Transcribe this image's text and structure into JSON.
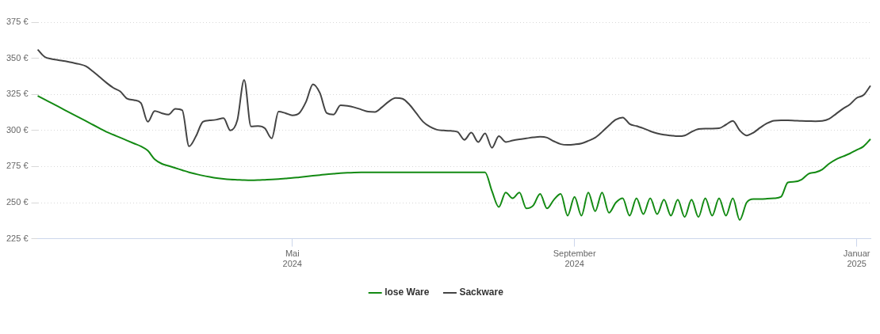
{
  "chart_data": {
    "type": "line",
    "categories": [
      null,
      null,
      null,
      null,
      null,
      null,
      null,
      null,
      null,
      null,
      null,
      null,
      null,
      null,
      null,
      null,
      null,
      null,
      null,
      null,
      null,
      null,
      null,
      null,
      null,
      null,
      null,
      null,
      null,
      null,
      null,
      null,
      null,
      null,
      null,
      null,
      null,
      "Mai 2024",
      null,
      null,
      null,
      null,
      null,
      null,
      null,
      null,
      null,
      null,
      null,
      null,
      null,
      null,
      null,
      null,
      null,
      null,
      null,
      null,
      null,
      null,
      null,
      null,
      null,
      null,
      null,
      null,
      null,
      null,
      null,
      null,
      null,
      null,
      null,
      null,
      null,
      null,
      null,
      null,
      "September 2024",
      null,
      null,
      null,
      null,
      null,
      null,
      null,
      null,
      null,
      null,
      null,
      null,
      null,
      null,
      null,
      null,
      null,
      null,
      null,
      null,
      null,
      null,
      null,
      null,
      null,
      null,
      null,
      null,
      null,
      null,
      null,
      null,
      null,
      null,
      null,
      null,
      null,
      null,
      null,
      null,
      "Januar 2025",
      null,
      null
    ],
    "series": [
      {
        "name": "lose Ware",
        "color": "#138a13",
        "values": [
          324,
          321.5,
          319,
          316.5,
          314,
          311.5,
          309,
          306.5,
          304,
          301.5,
          299,
          297,
          295,
          293,
          291,
          289,
          286,
          280,
          277,
          275.5,
          274,
          272.5,
          271,
          269.8,
          268.7,
          267.8,
          267,
          266.4,
          266,
          265.8,
          265.6,
          265.5,
          265.6,
          265.8,
          266,
          266.3,
          266.7,
          267.1,
          267.6,
          268.1,
          268.6,
          269.1,
          269.6,
          270,
          270.4,
          270.7,
          270.9,
          271,
          271,
          271,
          271,
          271,
          271,
          271,
          271,
          271,
          271,
          271,
          271,
          271,
          271,
          271,
          271,
          271,
          271,
          271,
          258,
          247,
          257,
          253,
          257,
          246,
          248,
          256,
          246,
          252,
          256,
          241,
          254,
          241,
          257,
          244,
          257,
          243,
          250,
          253,
          241,
          253,
          242,
          253,
          242,
          252,
          241,
          252,
          240,
          252,
          240,
          253,
          241,
          253,
          241,
          253,
          238,
          250,
          252.5,
          252.5,
          252.7,
          253,
          254,
          264,
          264.5,
          266,
          270,
          271,
          273,
          277,
          280,
          282,
          284,
          286.5,
          289,
          294
        ]
      },
      {
        "name": "Sackware",
        "color": "#444444",
        "values": [
          356,
          351,
          349.5,
          348.7,
          348,
          347,
          346,
          344.5,
          341,
          337,
          333,
          329.5,
          327,
          322,
          321,
          319,
          306,
          313.5,
          312,
          311,
          315,
          314,
          289,
          296,
          306,
          307,
          307.5,
          308.5,
          300,
          307,
          335,
          302.8,
          303,
          301.5,
          294.5,
          313,
          312,
          310.5,
          312,
          320,
          332,
          326,
          312,
          311,
          317.5,
          317,
          316,
          314.5,
          313,
          312.8,
          316,
          320,
          322.5,
          322,
          318,
          312,
          306,
          302.5,
          300.5,
          300,
          299.7,
          299,
          293.5,
          298.5,
          292,
          298,
          288,
          296,
          292,
          293,
          293.8,
          294.5,
          295.2,
          295.6,
          295,
          292.5,
          290.5,
          290,
          290.3,
          291,
          292.8,
          295,
          299,
          303.5,
          307.5,
          309,
          304.5,
          303,
          301.5,
          299.5,
          298,
          297,
          296.5,
          296,
          296.5,
          299,
          301,
          301.3,
          301.3,
          301.5,
          304,
          306.6,
          300,
          296.5,
          298.5,
          302,
          305,
          306.8,
          307,
          307,
          306.8,
          306.6,
          306.5,
          306.4,
          306.6,
          308,
          311.5,
          315,
          318,
          322.5,
          324.5,
          331
        ]
      }
    ],
    "ylim": [
      225,
      375
    ],
    "yticks": [
      {
        "value": 225,
        "label": "225 €"
      },
      {
        "value": 250,
        "label": "250 €"
      },
      {
        "value": 275,
        "label": "275 €"
      },
      {
        "value": 300,
        "label": "300 €"
      },
      {
        "value": 325,
        "label": "325 €"
      },
      {
        "value": 350,
        "label": "350 €"
      },
      {
        "value": 375,
        "label": "375 €"
      }
    ],
    "grid": true,
    "legend": "bottom"
  }
}
